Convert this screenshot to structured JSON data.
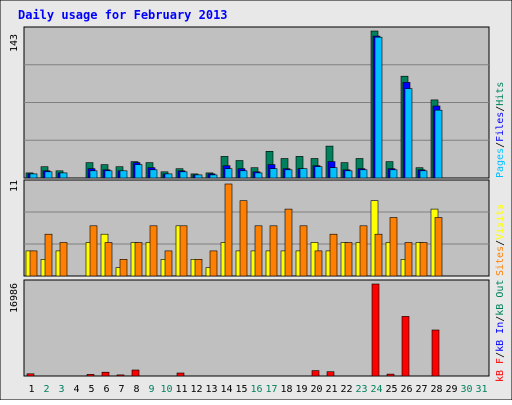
{
  "title": "Daily usage for February 2013",
  "colors": {
    "background": "#E8E8E8",
    "plot_bg": "#C0C0C0",
    "title": "#0000FF",
    "hits": "#00805C",
    "files": "#0000FF",
    "pages": "#00C0FF",
    "visits": "#FFFF00",
    "sites": "#FF8000",
    "kbf": "#FF0000",
    "kbin": "#0000FF",
    "kbout": "#00805C",
    "weekend_label": "#00805C",
    "weekday_label": "#000000"
  },
  "panel_labels": {
    "top": {
      "hits": "Hits",
      "files": "Files",
      "pages": "Pages"
    },
    "middle": {
      "visits": "Visits",
      "sites": "Sites"
    },
    "bottom": {
      "kbout": "kB Out",
      "kbin": "kB In",
      "kbf": "kB F"
    }
  },
  "chart_data": [
    {
      "type": "bar",
      "panel": "top",
      "ymax_label": "143",
      "ylim": [
        0,
        143
      ],
      "x": [
        1,
        2,
        3,
        4,
        5,
        6,
        7,
        8,
        9,
        10,
        11,
        12,
        13,
        14,
        15,
        16,
        17,
        18,
        19,
        20,
        21,
        22,
        23,
        24,
        25,
        26,
        27,
        28,
        29,
        30,
        31
      ],
      "weekend_days": [
        2,
        3,
        9,
        10,
        16,
        17,
        23,
        24,
        30,
        31
      ],
      "series": [
        {
          "name": "Hits",
          "values": [
            5,
            11,
            7,
            0,
            15,
            13,
            11,
            16,
            15,
            6,
            9,
            4,
            5,
            21,
            17,
            10,
            26,
            19,
            21,
            19,
            31,
            15,
            19,
            143,
            16,
            99,
            10,
            76,
            0,
            0,
            0
          ]
        },
        {
          "name": "Files",
          "values": [
            4,
            7,
            5,
            0,
            9,
            8,
            7,
            15,
            10,
            4,
            7,
            3,
            4,
            12,
            9,
            6,
            13,
            9,
            9,
            12,
            16,
            8,
            9,
            138,
            9,
            93,
            8,
            70,
            0,
            0,
            0
          ]
        },
        {
          "name": "Pages",
          "values": [
            4,
            6,
            5,
            0,
            7,
            7,
            7,
            13,
            8,
            4,
            6,
            3,
            3,
            9,
            7,
            5,
            9,
            8,
            9,
            11,
            10,
            7,
            8,
            137,
            8,
            87,
            7,
            66,
            0,
            0,
            0
          ]
        }
      ]
    },
    {
      "type": "bar",
      "panel": "middle",
      "ymax_label": "11",
      "ylim": [
        0,
        11
      ],
      "x": [
        1,
        2,
        3,
        4,
        5,
        6,
        7,
        8,
        9,
        10,
        11,
        12,
        13,
        14,
        15,
        16,
        17,
        18,
        19,
        20,
        21,
        22,
        23,
        24,
        25,
        26,
        27,
        28,
        29,
        30,
        31
      ],
      "series": [
        {
          "name": "Visits",
          "values": [
            3,
            2,
            3,
            0,
            4,
            5,
            1,
            4,
            4,
            2,
            6,
            2,
            1,
            4,
            3,
            3,
            3,
            3,
            3,
            4,
            3,
            4,
            4,
            9,
            4,
            2,
            4,
            8,
            0,
            0,
            0
          ]
        },
        {
          "name": "Sites",
          "values": [
            3,
            5,
            4,
            0,
            6,
            4,
            2,
            4,
            6,
            3,
            6,
            2,
            3,
            11,
            9,
            6,
            6,
            8,
            6,
            3,
            5,
            4,
            6,
            5,
            7,
            4,
            4,
            7,
            0,
            0,
            0
          ]
        }
      ]
    },
    {
      "type": "bar",
      "panel": "bottom",
      "ymax_label": "16986",
      "ylim": [
        0,
        16986
      ],
      "x": [
        1,
        2,
        3,
        4,
        5,
        6,
        7,
        8,
        9,
        10,
        11,
        12,
        13,
        14,
        15,
        16,
        17,
        18,
        19,
        20,
        21,
        22,
        23,
        24,
        25,
        26,
        27,
        28,
        29,
        30,
        31
      ],
      "series": [
        {
          "name": "kB F",
          "values": [
            400,
            0,
            0,
            0,
            300,
            700,
            200,
            1100,
            0,
            0,
            550,
            0,
            0,
            0,
            0,
            0,
            0,
            0,
            0,
            1000,
            800,
            0,
            0,
            16986,
            350,
            11000,
            0,
            8500,
            0,
            0,
            0
          ]
        },
        {
          "name": "kB In",
          "values": [
            0,
            0,
            0,
            0,
            0,
            0,
            0,
            0,
            0,
            0,
            0,
            0,
            0,
            0,
            0,
            0,
            0,
            0,
            0,
            0,
            0,
            0,
            0,
            0,
            0,
            0,
            0,
            0,
            0,
            0,
            0
          ]
        },
        {
          "name": "kB Out",
          "values": [
            0,
            0,
            0,
            0,
            0,
            0,
            0,
            0,
            0,
            0,
            0,
            0,
            0,
            0,
            0,
            0,
            0,
            0,
            0,
            0,
            0,
            0,
            0,
            0,
            0,
            0,
            0,
            0,
            0,
            0,
            0
          ]
        }
      ]
    }
  ]
}
